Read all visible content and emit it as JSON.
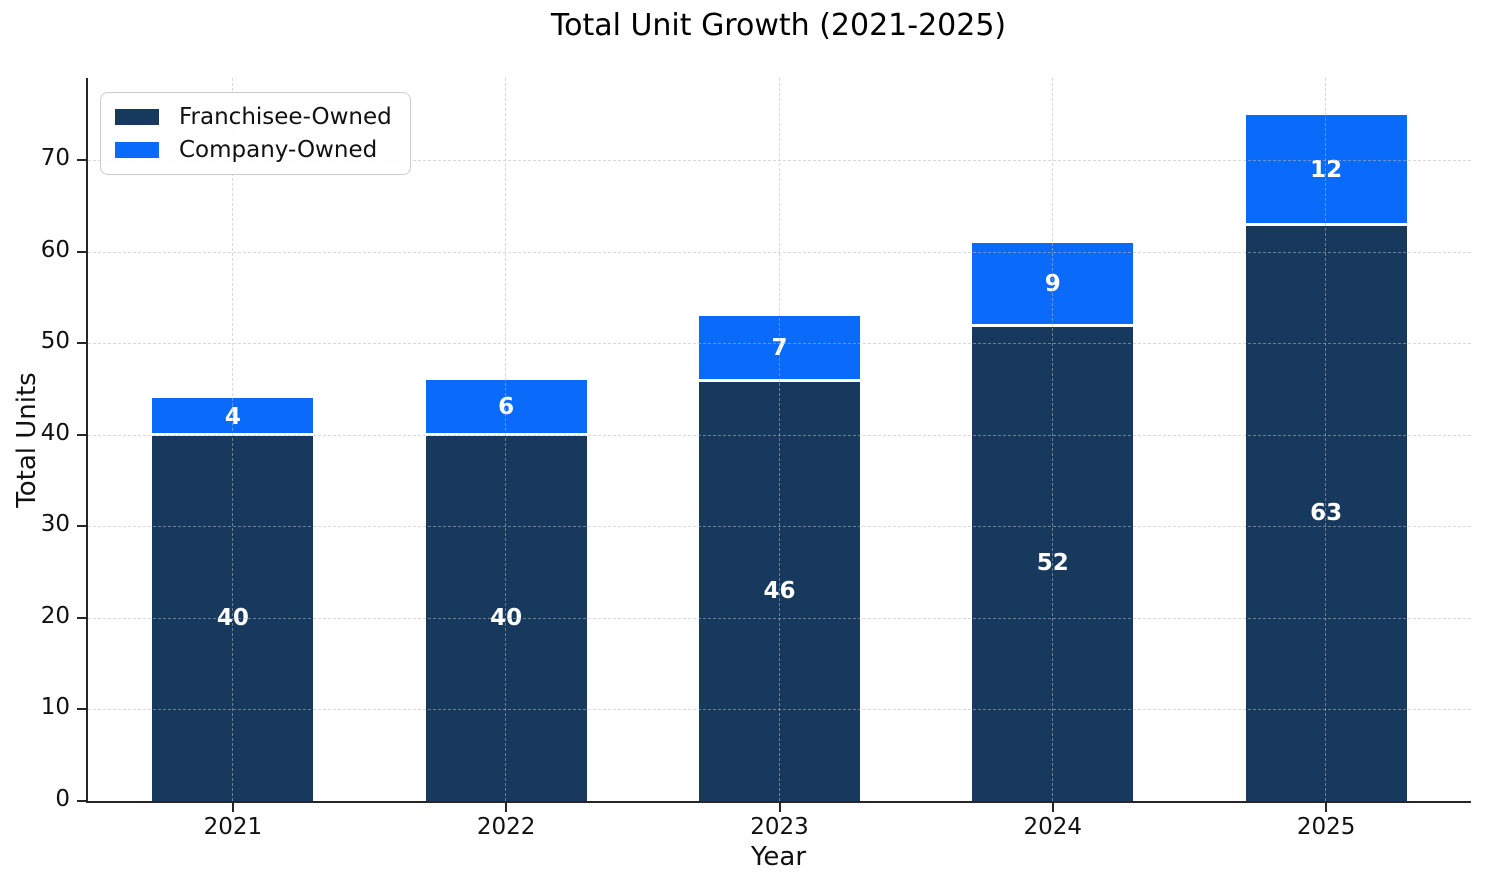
{
  "chart_data": {
    "type": "bar",
    "stacked": true,
    "title": "Total Unit Growth (2021-2025)",
    "xlabel": "Year",
    "ylabel": "Total Units",
    "categories": [
      "2021",
      "2022",
      "2023",
      "2024",
      "2025"
    ],
    "series": [
      {
        "name": "Franchisee-Owned",
        "color": "#17395d",
        "values": [
          40,
          40,
          46,
          52,
          63
        ]
      },
      {
        "name": "Company-Owned",
        "color": "#0a6bfb",
        "values": [
          4,
          6,
          7,
          9,
          12
        ]
      }
    ],
    "ylim": [
      0,
      79
    ],
    "yticks": [
      0,
      10,
      20,
      30,
      40,
      50,
      60,
      70
    ],
    "grid": "dashed both directions, light gray, drawn faintly over bars",
    "grid_color": "#b9b9b9",
    "axis_color": "#262626",
    "bar_label_color": "#ffffff",
    "segment_divider_color": "#ffffff",
    "legend_position": "upper left",
    "background": "#ffffff"
  }
}
